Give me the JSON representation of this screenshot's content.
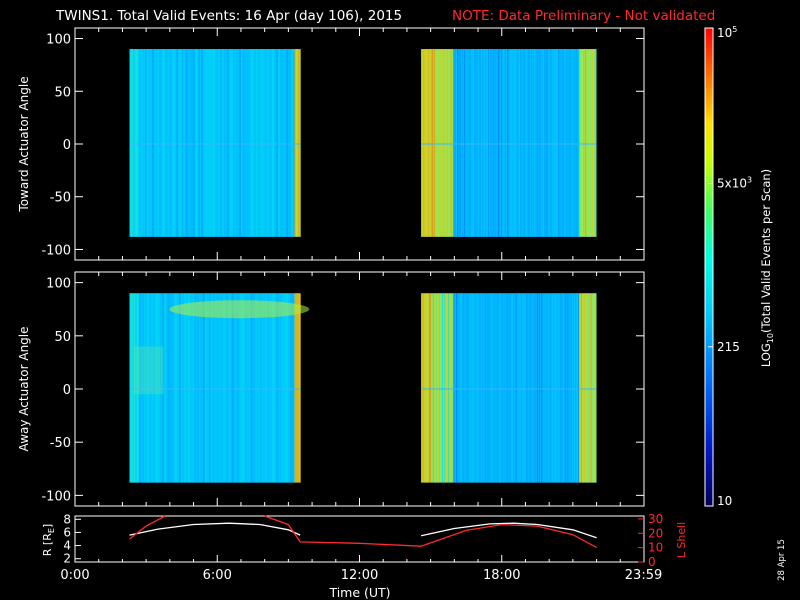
{
  "header": {
    "title": "TWINS1. Total Valid Events: 16 Apr (day 106), 2015",
    "note": "NOTE: Data Preliminary - Not validated",
    "note_color": "#ff2a2a"
  },
  "footer": {
    "date_stamp": "28 Apr 15"
  },
  "chart_data": [
    {
      "type": "heatmap",
      "name": "toward-panel",
      "ylabel": "Toward Actuator Angle",
      "yticks": [
        -100,
        -50,
        0,
        50,
        100
      ],
      "ytick_labels": [
        "-100",
        "-50",
        "0",
        "50",
        "100"
      ],
      "ylim": [
        -110,
        110
      ],
      "xlim_hours": [
        0,
        24
      ],
      "data_y_range": [
        -88,
        90
      ],
      "blocks": [
        {
          "start_hour": 2.3,
          "end_hour": 9.5
        },
        {
          "start_hour": 14.6,
          "end_hour": 22.0
        }
      ]
    },
    {
      "type": "heatmap",
      "name": "away-panel",
      "ylabel": "Away Actuator Angle",
      "yticks": [
        -100,
        -50,
        0,
        50,
        100
      ],
      "ytick_labels": [
        "-100",
        "-50",
        "0",
        "50",
        "100"
      ],
      "ylim": [
        -110,
        110
      ],
      "xlim_hours": [
        0,
        24
      ],
      "data_y_range": [
        -88,
        90
      ],
      "blocks": [
        {
          "start_hour": 2.3,
          "end_hour": 9.5
        },
        {
          "start_hour": 14.6,
          "end_hour": 22.0
        }
      ]
    },
    {
      "type": "line",
      "name": "orbit-panel",
      "xlabel": "Time (UT)",
      "x_ticks_hours": [
        0,
        6,
        12,
        18,
        23.98
      ],
      "x_tick_labels": [
        "0:00",
        "6:00",
        "12:00",
        "18:00",
        "23:59"
      ],
      "left_axis": {
        "label": "R [R",
        "label_sub": "E",
        "label_end": "]",
        "ticks": [
          2,
          4,
          6,
          8
        ],
        "ylim": [
          1.5,
          8.5
        ]
      },
      "right_axis": {
        "label": "L Shell",
        "ticks": [
          0,
          10,
          20,
          30
        ],
        "tick_labels": [
          "0",
          "10",
          "20",
          "30"
        ],
        "ylim": [
          0,
          32
        ],
        "color": "#ff2a2a"
      },
      "series": [
        {
          "axis": "left",
          "color": "#ffffff",
          "x": [
            2.3,
            3.5,
            5,
            6.5,
            7.8,
            9.0,
            9.5,
            null,
            14.6,
            16,
            17.5,
            18.5,
            19.5,
            21,
            22.0
          ],
          "y": [
            5.6,
            6.5,
            7.2,
            7.4,
            7.2,
            6.4,
            5.6,
            null,
            5.5,
            6.6,
            7.3,
            7.4,
            7.2,
            6.4,
            5.2
          ]
        },
        {
          "axis": "right",
          "color": "#ff2a2a",
          "x": [
            2.3,
            3.0,
            3.8,
            null,
            8.0,
            9.0,
            9.5,
            12.0,
            14.6,
            16.5,
            18.0,
            19.5,
            21.0,
            22.0
          ],
          "y": [
            16,
            25,
            32,
            null,
            32,
            26,
            14,
            13,
            11,
            22,
            26,
            25,
            19,
            10
          ]
        }
      ]
    },
    {
      "type": "heatmap",
      "name": "colorbar",
      "label": "LOG",
      "label_sub": "10",
      "label_end": "(Total Valid Events per Scan)",
      "scale": "log",
      "range": [
        10,
        100000
      ],
      "ticks": [
        {
          "value": 100000,
          "base": "10",
          "exp": "5"
        },
        {
          "value": 5000,
          "base": "5x10",
          "exp": "3"
        },
        {
          "value": 215,
          "text": "215"
        },
        {
          "value": 10,
          "text": "10"
        }
      ]
    }
  ]
}
